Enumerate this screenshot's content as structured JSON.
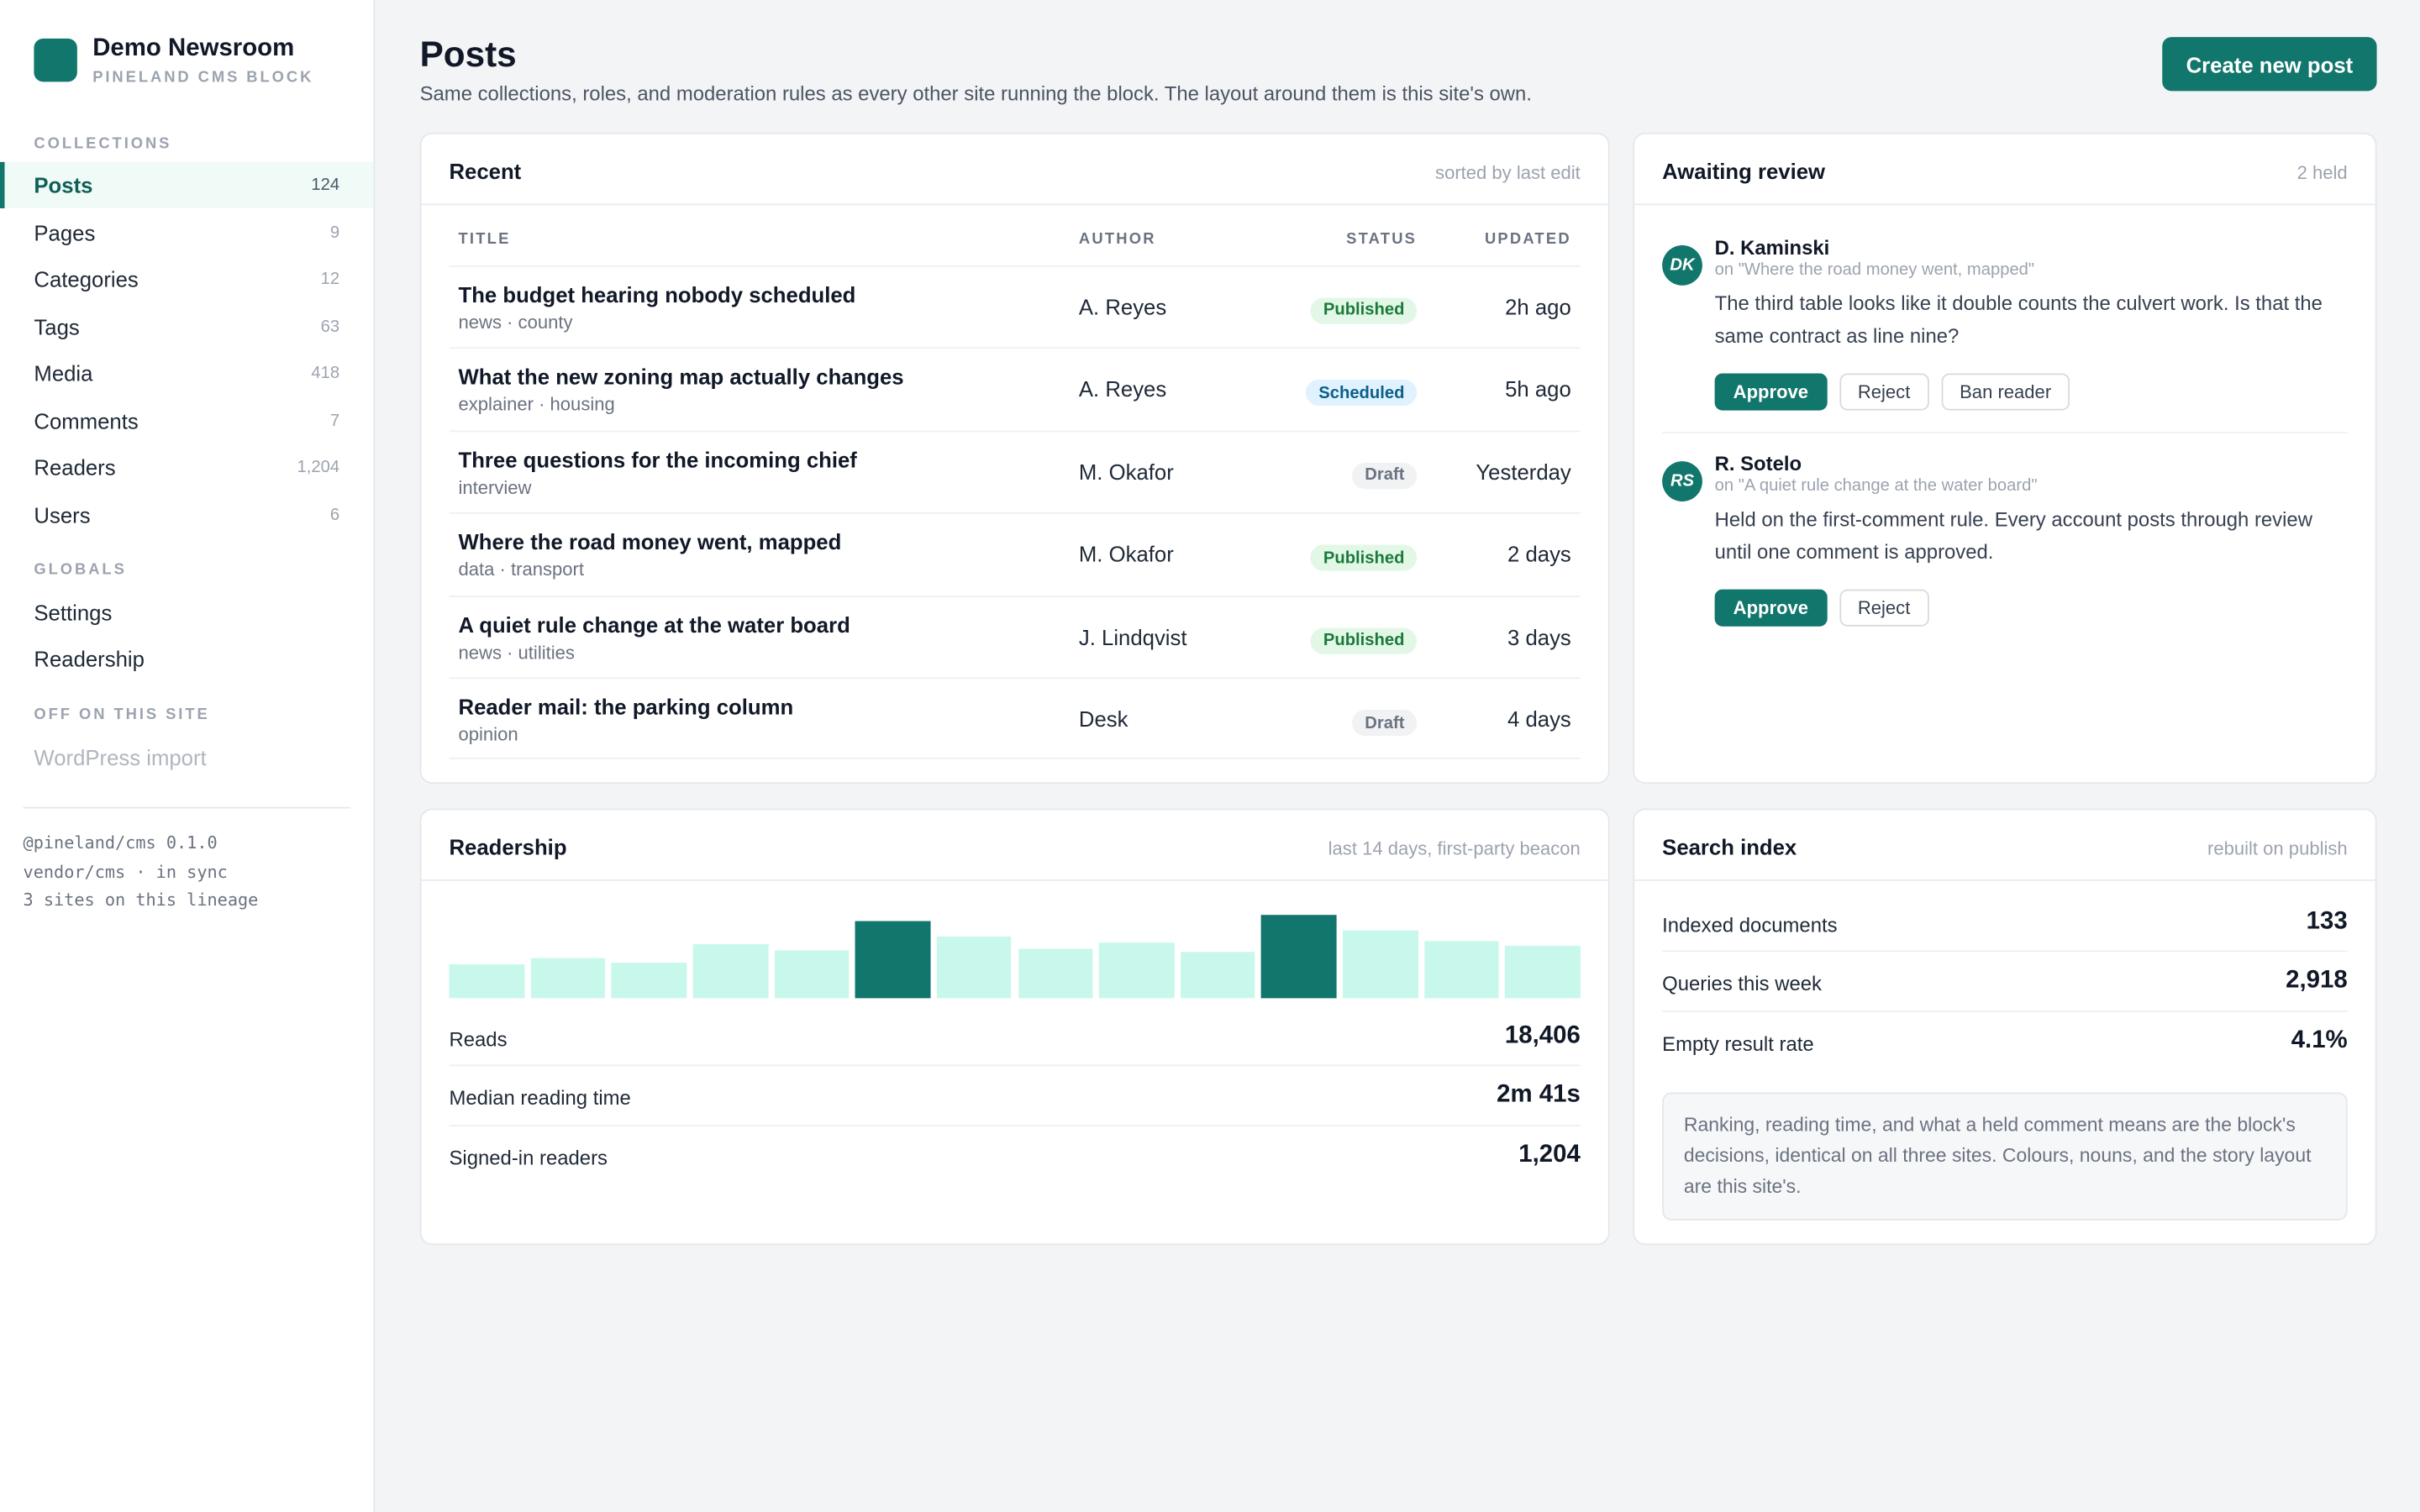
{
  "brand": {
    "name": "Demo Newsroom",
    "subtitle": "PINELAND CMS BLOCK"
  },
  "sidebar": {
    "sections": {
      "collections": "COLLECTIONS",
      "globals": "GLOBALS",
      "off": "OFF ON THIS SITE"
    },
    "collections": [
      {
        "label": "Posts",
        "count": "124",
        "active": true
      },
      {
        "label": "Pages",
        "count": "9"
      },
      {
        "label": "Categories",
        "count": "12"
      },
      {
        "label": "Tags",
        "count": "63"
      },
      {
        "label": "Media",
        "count": "418"
      },
      {
        "label": "Comments",
        "count": "7"
      },
      {
        "label": "Readers",
        "count": "1,204"
      },
      {
        "label": "Users",
        "count": "6"
      }
    ],
    "globals": [
      {
        "label": "Settings"
      },
      {
        "label": "Readership"
      }
    ],
    "off": [
      {
        "label": "WordPress import"
      }
    ],
    "footer": [
      "@pineland/cms 0.1.0",
      "vendor/cms · in sync",
      "3 sites on this lineage"
    ]
  },
  "header": {
    "title": "Posts",
    "subtitle": "Same collections, roles, and moderation rules as every other site running the block. The layout around them is this site's own.",
    "create_label": "Create new post"
  },
  "recent": {
    "title": "Recent",
    "meta": "sorted by last edit",
    "columns": {
      "title": "TITLE",
      "author": "AUTHOR",
      "status": "STATUS",
      "updated": "UPDATED"
    },
    "rows": [
      {
        "title": "The budget hearing nobody scheduled",
        "tags": "news · county",
        "author": "A. Reyes",
        "status": "Published",
        "kind": "published",
        "updated": "2h ago"
      },
      {
        "title": "What the new zoning map actually changes",
        "tags": "explainer · housing",
        "author": "A. Reyes",
        "status": "Scheduled",
        "kind": "scheduled",
        "updated": "5h ago"
      },
      {
        "title": "Three questions for the incoming chief",
        "tags": "interview",
        "author": "M. Okafor",
        "status": "Draft",
        "kind": "draft",
        "updated": "Yesterday"
      },
      {
        "title": "Where the road money went, mapped",
        "tags": "data · transport",
        "author": "M. Okafor",
        "status": "Published",
        "kind": "published",
        "updated": "2 days"
      },
      {
        "title": "A quiet rule change at the water board",
        "tags": "news · utilities",
        "author": "J. Lindqvist",
        "status": "Published",
        "kind": "published",
        "updated": "3 days"
      },
      {
        "title": "Reader mail: the parking column",
        "tags": "opinion",
        "author": "Desk",
        "status": "Draft",
        "kind": "draft",
        "updated": "4 days"
      }
    ]
  },
  "review": {
    "title": "Awaiting review",
    "meta": "2 held",
    "items": [
      {
        "initials": "DK",
        "name": "D. Kaminski",
        "on": "on \"Where the road money went, mapped\"",
        "body": "The third table looks like it double counts the culvert work. Is that the same contract as line nine?",
        "actions": [
          "Approve",
          "Reject",
          "Ban reader"
        ]
      },
      {
        "initials": "RS",
        "name": "R. Sotelo",
        "on": "on \"A quiet rule change at the water board\"",
        "body": "Held on the first-comment rule. Every account posts through review until one comment is approved.",
        "actions": [
          "Approve",
          "Reject"
        ]
      }
    ]
  },
  "readership": {
    "title": "Readership",
    "meta": "last 14 days, first-party beacon",
    "daily_reads": [
      0.4,
      0.48,
      0.42,
      0.65,
      0.58,
      0.93,
      0.75,
      0.6,
      0.67,
      0.55,
      1.0,
      0.81,
      0.69,
      0.63
    ],
    "highlight_days": [
      5,
      10
    ],
    "colors": {
      "bar": "#c8f7ec",
      "highlight": "#11766b"
    },
    "stats": [
      {
        "label": "Reads",
        "value": "18,406"
      },
      {
        "label": "Median reading time",
        "value": "2m 41s"
      },
      {
        "label": "Signed-in readers",
        "value": "1,204"
      }
    ]
  },
  "search": {
    "title": "Search index",
    "meta": "rebuilt on publish",
    "stats": [
      {
        "label": "Indexed documents",
        "value": "133"
      },
      {
        "label": "Queries this week",
        "value": "2,918"
      },
      {
        "label": "Empty result rate",
        "value": "4.1%"
      }
    ],
    "note": "Ranking, reading time, and what a held comment means are the block's decisions, identical on all three sites. Colours, nouns, and the story layout are this site's."
  },
  "colors": {
    "accent": "#11766b"
  }
}
